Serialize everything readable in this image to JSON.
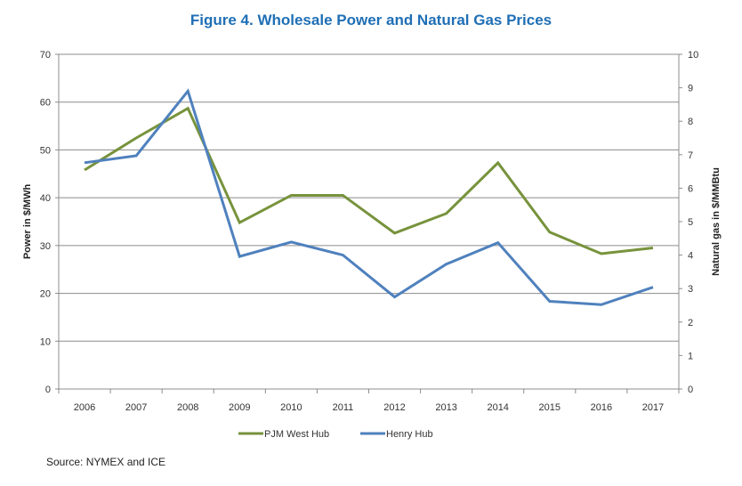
{
  "chart_data": {
    "type": "line",
    "title": "Figure 4. Wholesale Power and Natural Gas Prices",
    "categories": [
      "2006",
      "2007",
      "2008",
      "2009",
      "2010",
      "2011",
      "2012",
      "2013",
      "2014",
      "2015",
      "2016",
      "2017"
    ],
    "y_left": {
      "label": "Power in $/MWh",
      "range": [
        0,
        70
      ],
      "ticks": [
        0,
        10,
        20,
        30,
        40,
        50,
        60,
        70
      ]
    },
    "y_right": {
      "label": "Natural gas in $/MMBtu",
      "range": [
        0,
        10
      ],
      "ticks": [
        0,
        1,
        2,
        3,
        4,
        5,
        6,
        7,
        8,
        9,
        10
      ]
    },
    "grid": "horizontal",
    "legend_position": "bottom",
    "series": [
      {
        "name": "PJM West Hub",
        "axis": "left",
        "color": "#77933c",
        "values": [
          45.8,
          52.5,
          58.7,
          34.8,
          40.5,
          40.5,
          32.6,
          36.7,
          47.3,
          32.8,
          28.3,
          29.5
        ]
      },
      {
        "name": "Henry Hub",
        "axis": "right",
        "color": "#4f81bd",
        "values": [
          6.76,
          6.97,
          8.9,
          3.96,
          4.39,
          4.0,
          2.75,
          3.73,
          4.37,
          2.62,
          2.52,
          3.04
        ]
      }
    ]
  },
  "source": "Source: NYMEX and ICE"
}
